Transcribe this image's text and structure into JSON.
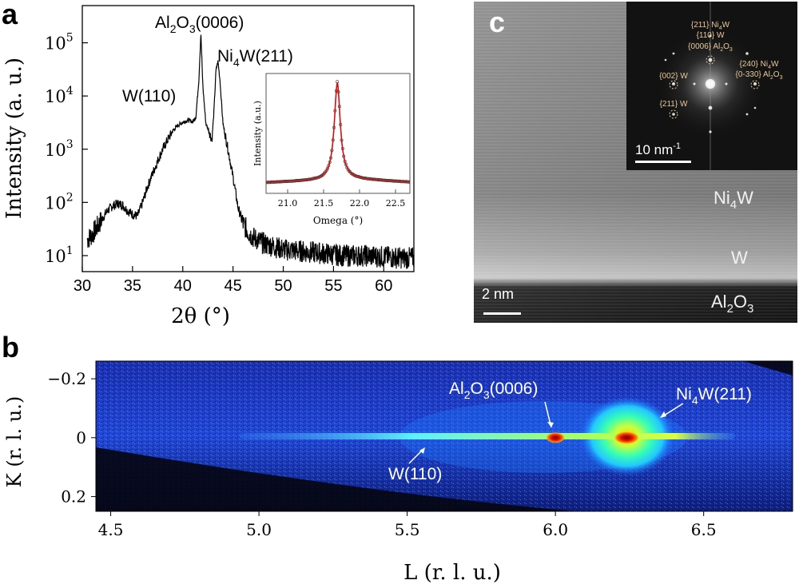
{
  "panel_labels": {
    "a": "a",
    "b": "b",
    "c": "c"
  },
  "colors": {
    "curve": "#000000",
    "fit": "#cc1111",
    "tem_label": "#f2f2f2",
    "fft_label": "#e8c89a"
  },
  "chart_data": [
    {
      "id": "xrd-2theta",
      "type": "line",
      "xlabel": "2θ (°)",
      "ylabel": "Intensity (a. u.)",
      "yscale": "log",
      "xlim": [
        30,
        63
      ],
      "ylim": [
        5,
        500000
      ],
      "xticks": [
        "30",
        "35",
        "40",
        "45",
        "50",
        "55",
        "60"
      ],
      "yticks": [
        {
          "base": "10",
          "exp": "1",
          "v": 10
        },
        {
          "base": "10",
          "exp": "2",
          "v": 100
        },
        {
          "base": "10",
          "exp": "3",
          "v": 1000
        },
        {
          "base": "10",
          "exp": "4",
          "v": 10000
        },
        {
          "base": "10",
          "exp": "5",
          "v": 100000
        }
      ],
      "series": [
        {
          "x": [
            30.5,
            31,
            31.5,
            32,
            32.5,
            33,
            33.5,
            34,
            34.5,
            35,
            35.5,
            36,
            36.5,
            37,
            37.5,
            38,
            38.5,
            39,
            39.5,
            40,
            40.5,
            41,
            41.3,
            41.6,
            41.8,
            42.0,
            42.3,
            42.6,
            42.9,
            43.1,
            43.3,
            43.5,
            43.7,
            44.0,
            44.5,
            45,
            45.5,
            46,
            46.5,
            47,
            48,
            49,
            50,
            52,
            54,
            56,
            58,
            60,
            62,
            63
          ],
          "y": [
            20,
            25,
            35,
            50,
            70,
            85,
            95,
            90,
            70,
            60,
            55,
            100,
            200,
            350,
            600,
            1000,
            1500,
            2200,
            2800,
            3200,
            3500,
            3300,
            4000,
            20000,
            150000,
            15000,
            3000,
            2200,
            1500,
            5000,
            30000,
            45000,
            20000,
            3000,
            1000,
            300,
            80,
            40,
            28,
            22,
            17,
            15,
            13,
            12,
            11,
            10,
            10,
            9.5,
            9,
            9
          ]
        }
      ],
      "annotations": [
        {
          "text": "W(110)",
          "x": 40.0,
          "y": 4000
        },
        {
          "text": "Al2O3(0006)",
          "x": 41.8,
          "y": 150000
        },
        {
          "text": "Ni4W(211)",
          "x": 43.5,
          "y": 45000
        }
      ],
      "inset": {
        "type": "scatter+line",
        "xlabel": "Omega (°)",
        "ylabel": "Intensity (a.u.)",
        "xlim": [
          20.7,
          22.7
        ],
        "xticks": [
          "21.0",
          "21.5",
          "22.0",
          "22.5"
        ],
        "peak_center": 21.69
      }
    },
    {
      "id": "rsm-map",
      "type": "heatmap",
      "xlabel": "L (r. l. u.)",
      "ylabel": "K (r. l. u.)",
      "xlim": [
        4.45,
        6.8
      ],
      "ylim": [
        -0.26,
        0.25
      ],
      "xticks": [
        "4.5",
        "5.0",
        "5.5",
        "6.0",
        "6.5"
      ],
      "yticks": [
        "−0.2",
        "0",
        "0.2"
      ],
      "spots": [
        {
          "L": 6.0,
          "K": 0.0,
          "level": "max"
        },
        {
          "L": 6.24,
          "K": 0.0,
          "level": "max"
        }
      ],
      "annotations": [
        {
          "text": "Al2O3(0006)",
          "L": 6.0,
          "K": -0.14
        },
        {
          "text": "Ni4W(211)",
          "L": 6.5,
          "K": -0.14
        },
        {
          "text": "W(110)",
          "L": 5.5,
          "K": 0.11
        }
      ]
    }
  ],
  "tem": {
    "layers": [
      "Ni4W",
      "W",
      "Al2O3"
    ],
    "scalebar": "2 nm",
    "fft": {
      "scalebar": "10 nm-1",
      "labels": [
        "{211} Ni4W",
        "{110} W",
        "{0006} Al2O3",
        "{240} Ni4W",
        "{0-330} Al2O3",
        "{002} W",
        "{211} W"
      ]
    }
  }
}
